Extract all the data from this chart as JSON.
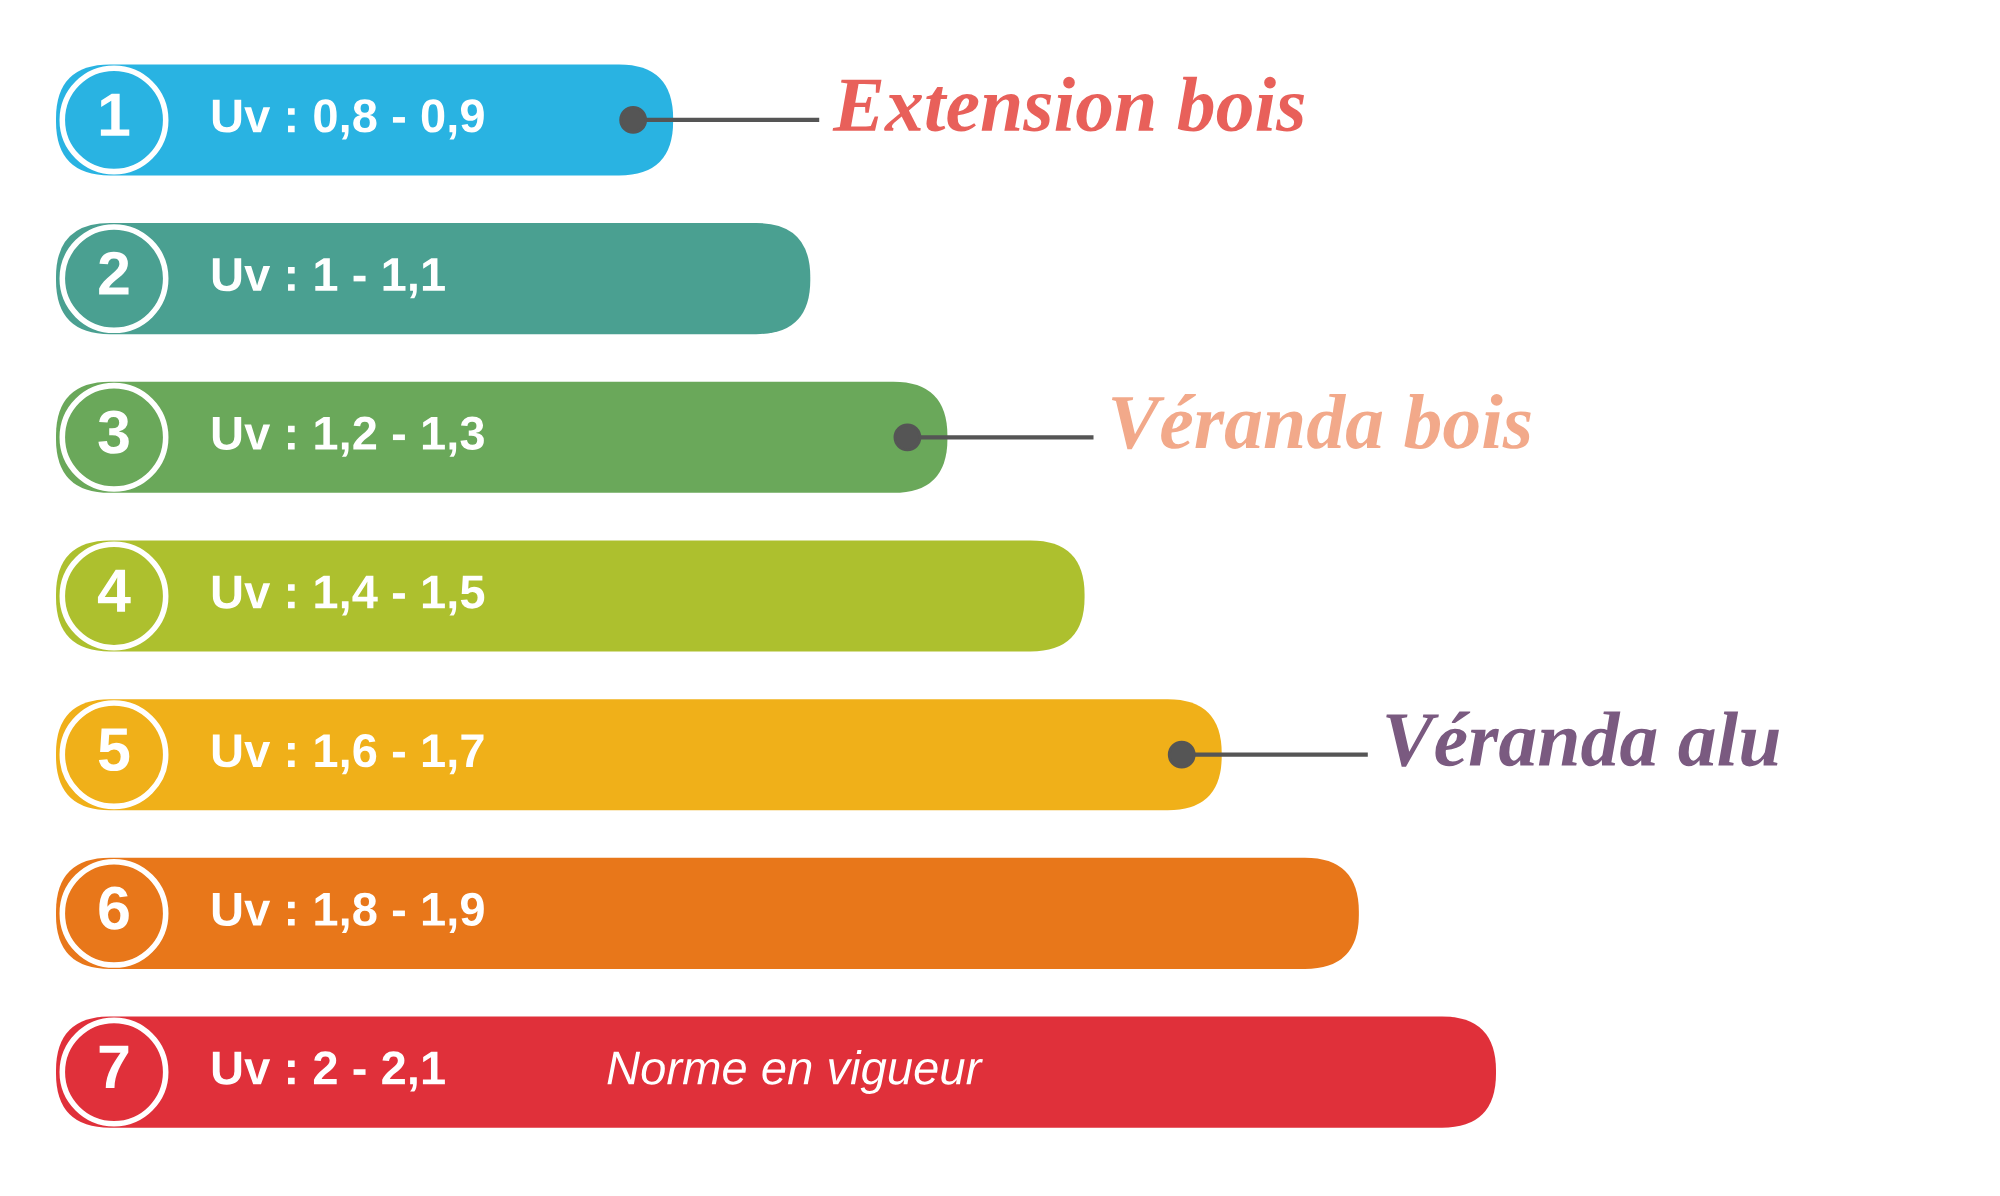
{
  "chart_data": {
    "type": "bar",
    "orientation": "horizontal",
    "categories": [
      "1",
      "2",
      "3",
      "4",
      "5",
      "6",
      "7"
    ],
    "values": [
      0.9,
      1.1,
      1.3,
      1.5,
      1.7,
      1.9,
      2.1
    ],
    "colors": [
      "#29b3e2",
      "#4aa091",
      "#6aa85a",
      "#adc02e",
      "#f0b019",
      "#e8771a",
      "#e0303a"
    ],
    "value_labels": [
      "Uv : 0,8 - 0,9",
      "Uv : 1 - 1,1",
      "Uv : 1,2 - 1,3",
      "Uv : 1,4 - 1,5",
      "Uv : 1,6 - 1,7",
      "Uv : 1,8 - 1,9",
      "Uv : 2 - 2,1"
    ],
    "annotations": [
      {
        "text": "Extension bois",
        "x": 0.9,
        "y": "1"
      },
      {
        "text": "Véranda bois",
        "x": 1.3,
        "y": "3"
      },
      {
        "text": "Véranda alu",
        "x": 1.7,
        "y": "5"
      },
      "Norme en vigueur"
    ],
    "tick_labels": false
  }
}
